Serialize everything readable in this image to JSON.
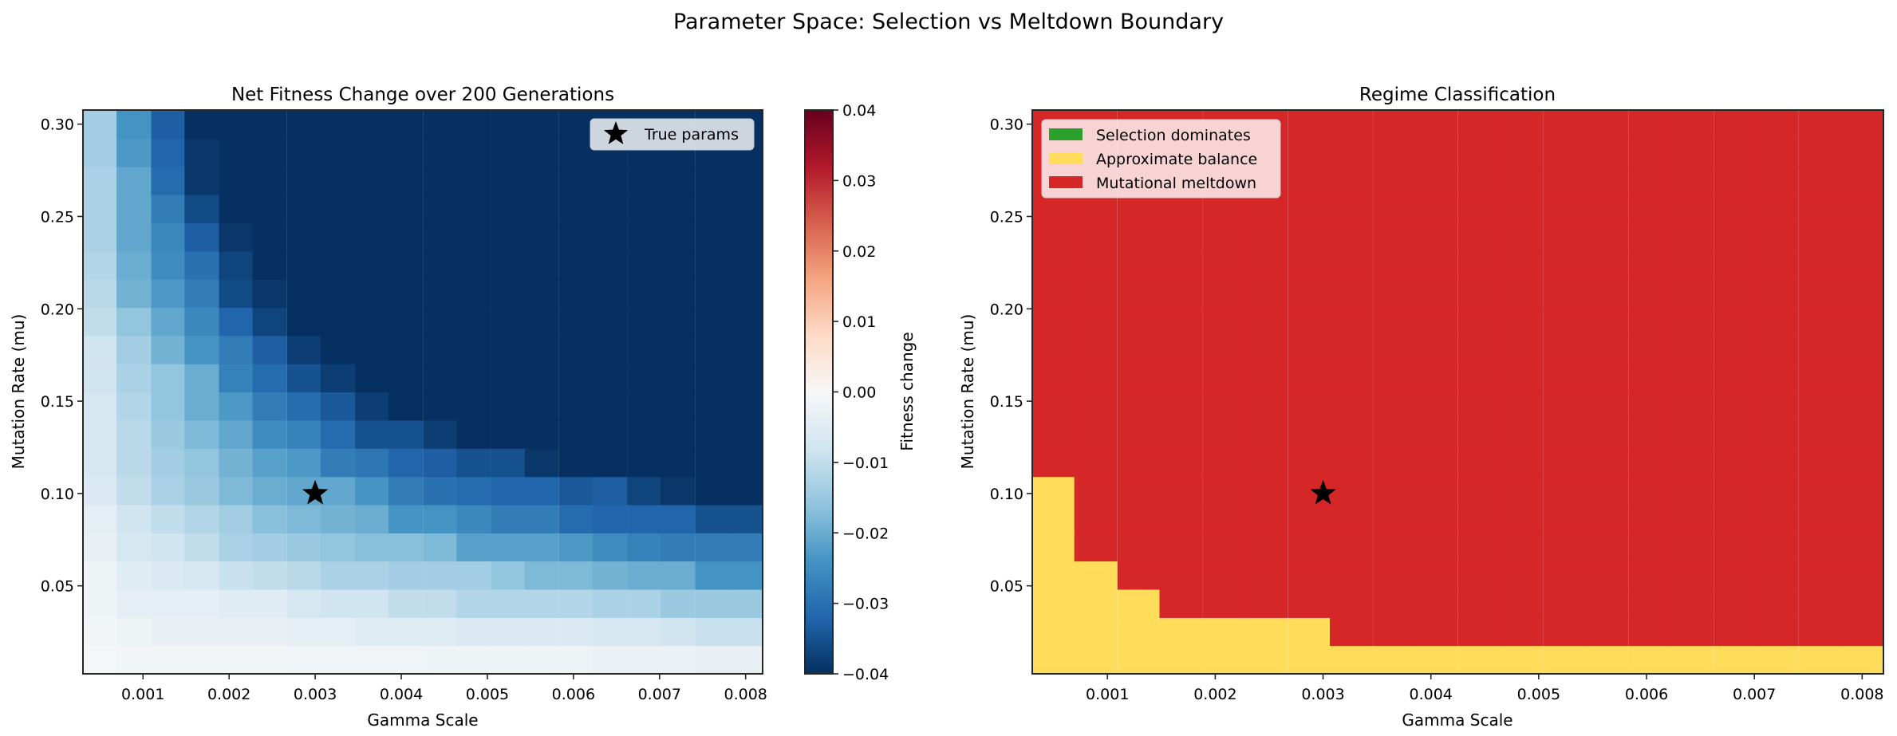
{
  "suptitle": "Parameter Space: Selection vs Meltdown Boundary",
  "chart_data": [
    {
      "type": "heatmap",
      "title": "Net Fitness Change over 200 Generations",
      "xlabel": "Gamma Scale",
      "ylabel": "Mutation Rate (mu)",
      "x": [
        0.0005,
        0.00089,
        0.00129,
        0.00168,
        0.00208,
        0.00247,
        0.00287,
        0.00326,
        0.00366,
        0.00405,
        0.00445,
        0.00484,
        0.00524,
        0.00563,
        0.00603,
        0.00642,
        0.00682,
        0.00721,
        0.00761,
        0.008
      ],
      "y": [
        0.01,
        0.0253,
        0.0405,
        0.0558,
        0.0711,
        0.0863,
        0.1016,
        0.1168,
        0.1321,
        0.1474,
        0.1626,
        0.1779,
        0.1932,
        0.2084,
        0.2237,
        0.2389,
        0.2542,
        0.2695,
        0.2847,
        0.3
      ],
      "z": [
        [
          -0.0005,
          -0.001,
          -0.001,
          -0.001,
          -0.001,
          -0.001,
          -0.0015,
          -0.0015,
          -0.0015,
          -0.0015,
          -0.002,
          -0.002,
          -0.002,
          -0.002,
          -0.002,
          -0.0025,
          -0.0025,
          -0.0025,
          -0.003,
          -0.003
        ],
        [
          -0.001,
          -0.002,
          -0.003,
          -0.003,
          -0.003,
          -0.003,
          -0.004,
          -0.004,
          -0.005,
          -0.005,
          -0.005,
          -0.006,
          -0.006,
          -0.006,
          -0.006,
          -0.007,
          -0.007,
          -0.008,
          -0.009,
          -0.009
        ],
        [
          -0.002,
          -0.004,
          -0.004,
          -0.004,
          -0.005,
          -0.005,
          -0.007,
          -0.008,
          -0.008,
          -0.01,
          -0.01,
          -0.012,
          -0.012,
          -0.012,
          -0.012,
          -0.013,
          -0.013,
          -0.015,
          -0.015,
          -0.015
        ],
        [
          -0.002,
          -0.005,
          -0.006,
          -0.007,
          -0.009,
          -0.01,
          -0.011,
          -0.013,
          -0.013,
          -0.014,
          -0.014,
          -0.014,
          -0.016,
          -0.018,
          -0.018,
          -0.019,
          -0.02,
          -0.02,
          -0.024,
          -0.024
        ],
        [
          -0.003,
          -0.007,
          -0.008,
          -0.01,
          -0.013,
          -0.014,
          -0.015,
          -0.016,
          -0.017,
          -0.017,
          -0.018,
          -0.022,
          -0.022,
          -0.022,
          -0.023,
          -0.025,
          -0.027,
          -0.028,
          -0.028,
          -0.028
        ],
        [
          -0.004,
          -0.008,
          -0.01,
          -0.012,
          -0.014,
          -0.017,
          -0.018,
          -0.019,
          -0.02,
          -0.024,
          -0.024,
          -0.026,
          -0.028,
          -0.028,
          -0.031,
          -0.032,
          -0.032,
          -0.032,
          -0.035,
          -0.035
        ],
        [
          -0.006,
          -0.01,
          -0.013,
          -0.015,
          -0.018,
          -0.02,
          -0.021,
          -0.021,
          -0.024,
          -0.028,
          -0.03,
          -0.031,
          -0.032,
          -0.032,
          -0.034,
          -0.033,
          -0.037,
          -0.039,
          -0.04,
          -0.04
        ],
        [
          -0.007,
          -0.011,
          -0.014,
          -0.016,
          -0.019,
          -0.022,
          -0.023,
          -0.028,
          -0.029,
          -0.032,
          -0.033,
          -0.035,
          -0.035,
          -0.039,
          -0.04,
          -0.04,
          -0.04,
          -0.04,
          -0.04,
          -0.04
        ],
        [
          -0.007,
          -0.011,
          -0.015,
          -0.018,
          -0.021,
          -0.025,
          -0.027,
          -0.031,
          -0.035,
          -0.035,
          -0.038,
          -0.04,
          -0.04,
          -0.04,
          -0.04,
          -0.04,
          -0.04,
          -0.04,
          -0.04,
          -0.04
        ],
        [
          -0.007,
          -0.012,
          -0.016,
          -0.02,
          -0.023,
          -0.028,
          -0.031,
          -0.034,
          -0.038,
          -0.04,
          -0.04,
          -0.04,
          -0.04,
          -0.04,
          -0.04,
          -0.04,
          -0.04,
          -0.04,
          -0.04,
          -0.04
        ],
        [
          -0.008,
          -0.013,
          -0.016,
          -0.02,
          -0.027,
          -0.031,
          -0.035,
          -0.038,
          -0.04,
          -0.04,
          -0.04,
          -0.04,
          -0.04,
          -0.04,
          -0.04,
          -0.04,
          -0.04,
          -0.04,
          -0.04,
          -0.04
        ],
        [
          -0.008,
          -0.014,
          -0.019,
          -0.024,
          -0.028,
          -0.033,
          -0.038,
          -0.04,
          -0.04,
          -0.04,
          -0.04,
          -0.04,
          -0.04,
          -0.04,
          -0.04,
          -0.04,
          -0.04,
          -0.04,
          -0.04,
          -0.04
        ],
        [
          -0.01,
          -0.016,
          -0.021,
          -0.026,
          -0.032,
          -0.037,
          -0.04,
          -0.04,
          -0.04,
          -0.04,
          -0.04,
          -0.04,
          -0.04,
          -0.04,
          -0.04,
          -0.04,
          -0.04,
          -0.04,
          -0.04,
          -0.04
        ],
        [
          -0.011,
          -0.019,
          -0.023,
          -0.028,
          -0.036,
          -0.039,
          -0.04,
          -0.04,
          -0.04,
          -0.04,
          -0.04,
          -0.04,
          -0.04,
          -0.04,
          -0.04,
          -0.04,
          -0.04,
          -0.04,
          -0.04,
          -0.04
        ],
        [
          -0.012,
          -0.02,
          -0.025,
          -0.03,
          -0.037,
          -0.04,
          -0.04,
          -0.04,
          -0.04,
          -0.04,
          -0.04,
          -0.04,
          -0.04,
          -0.04,
          -0.04,
          -0.04,
          -0.04,
          -0.04,
          -0.04,
          -0.04
        ],
        [
          -0.013,
          -0.021,
          -0.026,
          -0.033,
          -0.039,
          -0.04,
          -0.04,
          -0.04,
          -0.04,
          -0.04,
          -0.04,
          -0.04,
          -0.04,
          -0.04,
          -0.04,
          -0.04,
          -0.04,
          -0.04,
          -0.04,
          -0.04
        ],
        [
          -0.013,
          -0.021,
          -0.028,
          -0.036,
          -0.04,
          -0.04,
          -0.04,
          -0.04,
          -0.04,
          -0.04,
          -0.04,
          -0.04,
          -0.04,
          -0.04,
          -0.04,
          -0.04,
          -0.04,
          -0.04,
          -0.04,
          -0.04
        ],
        [
          -0.013,
          -0.021,
          -0.031,
          -0.039,
          -0.04,
          -0.04,
          -0.04,
          -0.04,
          -0.04,
          -0.04,
          -0.04,
          -0.04,
          -0.04,
          -0.04,
          -0.04,
          -0.04,
          -0.04,
          -0.04,
          -0.04,
          -0.04
        ],
        [
          -0.014,
          -0.023,
          -0.032,
          -0.039,
          -0.04,
          -0.04,
          -0.04,
          -0.04,
          -0.04,
          -0.04,
          -0.04,
          -0.04,
          -0.04,
          -0.04,
          -0.04,
          -0.04,
          -0.04,
          -0.04,
          -0.04,
          -0.04
        ],
        [
          -0.014,
          -0.024,
          -0.033,
          -0.04,
          -0.04,
          -0.04,
          -0.04,
          -0.04,
          -0.04,
          -0.04,
          -0.04,
          -0.04,
          -0.04,
          -0.04,
          -0.04,
          -0.04,
          -0.04,
          -0.04,
          -0.04,
          -0.04
        ]
      ],
      "xticks": [
        "0.001",
        "0.002",
        "0.003",
        "0.004",
        "0.005",
        "0.006",
        "0.007",
        "0.008"
      ],
      "yticks": [
        "0.05",
        "0.10",
        "0.15",
        "0.20",
        "0.25",
        "0.30"
      ],
      "colormap": "RdBu_r",
      "colormap_stops": [
        "#053061",
        "#2166ac",
        "#4393c3",
        "#92c5de",
        "#d1e5f0",
        "#f7f7f7",
        "#fddbc7",
        "#f4a582",
        "#d6604d",
        "#b2182b",
        "#67001f"
      ],
      "clim": [
        -0.04,
        0.04
      ],
      "colorbar": {
        "label": "Fitness change",
        "ticks": [
          "−0.04",
          "−0.03",
          "−0.02",
          "−0.01",
          "0.00",
          "0.01",
          "0.02",
          "0.03",
          "0.04"
        ]
      },
      "marker": {
        "x": 0.003,
        "y": 0.1,
        "symbol": "star",
        "label": "True params"
      },
      "legend_placement": "top-right"
    },
    {
      "type": "heatmap",
      "title": "Regime Classification",
      "xlabel": "Gamma Scale",
      "ylabel": "Mutation Rate (mu)",
      "categories": [
        {
          "name": "Selection dominates",
          "color": "#2ca02c"
        },
        {
          "name": "Approximate balance",
          "color": "#ffdc5a"
        },
        {
          "name": "Mutational meltdown",
          "color": "#d62728"
        }
      ],
      "z": [
        [
          1,
          1,
          1,
          1,
          1,
          1,
          1,
          1,
          1,
          1,
          1,
          1,
          1,
          1,
          1,
          1,
          1,
          1,
          1,
          1
        ],
        [
          1,
          1,
          1,
          1,
          1,
          1,
          1,
          2,
          2,
          2,
          2,
          2,
          2,
          2,
          2,
          2,
          2,
          2,
          2,
          2
        ],
        [
          1,
          1,
          1,
          2,
          2,
          2,
          2,
          2,
          2,
          2,
          2,
          2,
          2,
          2,
          2,
          2,
          2,
          2,
          2,
          2
        ],
        [
          1,
          1,
          2,
          2,
          2,
          2,
          2,
          2,
          2,
          2,
          2,
          2,
          2,
          2,
          2,
          2,
          2,
          2,
          2,
          2
        ],
        [
          1,
          2,
          2,
          2,
          2,
          2,
          2,
          2,
          2,
          2,
          2,
          2,
          2,
          2,
          2,
          2,
          2,
          2,
          2,
          2
        ],
        [
          1,
          2,
          2,
          2,
          2,
          2,
          2,
          2,
          2,
          2,
          2,
          2,
          2,
          2,
          2,
          2,
          2,
          2,
          2,
          2
        ],
        [
          1,
          2,
          2,
          2,
          2,
          2,
          2,
          2,
          2,
          2,
          2,
          2,
          2,
          2,
          2,
          2,
          2,
          2,
          2,
          2
        ],
        [
          2,
          2,
          2,
          2,
          2,
          2,
          2,
          2,
          2,
          2,
          2,
          2,
          2,
          2,
          2,
          2,
          2,
          2,
          2,
          2
        ],
        [
          2,
          2,
          2,
          2,
          2,
          2,
          2,
          2,
          2,
          2,
          2,
          2,
          2,
          2,
          2,
          2,
          2,
          2,
          2,
          2
        ],
        [
          2,
          2,
          2,
          2,
          2,
          2,
          2,
          2,
          2,
          2,
          2,
          2,
          2,
          2,
          2,
          2,
          2,
          2,
          2,
          2
        ],
        [
          2,
          2,
          2,
          2,
          2,
          2,
          2,
          2,
          2,
          2,
          2,
          2,
          2,
          2,
          2,
          2,
          2,
          2,
          2,
          2
        ],
        [
          2,
          2,
          2,
          2,
          2,
          2,
          2,
          2,
          2,
          2,
          2,
          2,
          2,
          2,
          2,
          2,
          2,
          2,
          2,
          2
        ],
        [
          2,
          2,
          2,
          2,
          2,
          2,
          2,
          2,
          2,
          2,
          2,
          2,
          2,
          2,
          2,
          2,
          2,
          2,
          2,
          2
        ],
        [
          2,
          2,
          2,
          2,
          2,
          2,
          2,
          2,
          2,
          2,
          2,
          2,
          2,
          2,
          2,
          2,
          2,
          2,
          2,
          2
        ],
        [
          2,
          2,
          2,
          2,
          2,
          2,
          2,
          2,
          2,
          2,
          2,
          2,
          2,
          2,
          2,
          2,
          2,
          2,
          2,
          2
        ],
        [
          2,
          2,
          2,
          2,
          2,
          2,
          2,
          2,
          2,
          2,
          2,
          2,
          2,
          2,
          2,
          2,
          2,
          2,
          2,
          2
        ],
        [
          2,
          2,
          2,
          2,
          2,
          2,
          2,
          2,
          2,
          2,
          2,
          2,
          2,
          2,
          2,
          2,
          2,
          2,
          2,
          2
        ],
        [
          2,
          2,
          2,
          2,
          2,
          2,
          2,
          2,
          2,
          2,
          2,
          2,
          2,
          2,
          2,
          2,
          2,
          2,
          2,
          2
        ],
        [
          2,
          2,
          2,
          2,
          2,
          2,
          2,
          2,
          2,
          2,
          2,
          2,
          2,
          2,
          2,
          2,
          2,
          2,
          2,
          2
        ],
        [
          2,
          2,
          2,
          2,
          2,
          2,
          2,
          2,
          2,
          2,
          2,
          2,
          2,
          2,
          2,
          2,
          2,
          2,
          2,
          2
        ]
      ],
      "xticks": [
        "0.001",
        "0.002",
        "0.003",
        "0.004",
        "0.005",
        "0.006",
        "0.007",
        "0.008"
      ],
      "yticks": [
        "0.05",
        "0.10",
        "0.15",
        "0.20",
        "0.25",
        "0.30"
      ],
      "marker": {
        "x": 0.003,
        "y": 0.1,
        "symbol": "star"
      },
      "legend_placement": "top-left"
    }
  ]
}
